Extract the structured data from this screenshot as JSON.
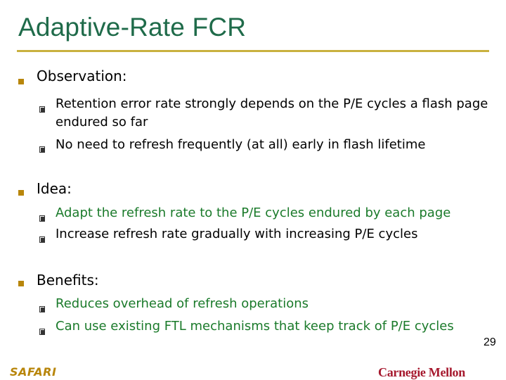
{
  "slide": {
    "title": "Adaptive-Rate FCR",
    "sections": [
      {
        "heading": "Observation:",
        "items": [
          "Retention error rate strongly depends on the P/E cycles a flash page endured so far",
          "No need to refresh frequently (at all) early in flash lifetime"
        ]
      },
      {
        "heading": "Idea:",
        "items": [
          "Adapt the refresh rate to the P/E cycles endured by each page",
          "Increase refresh rate gradually with increasing P/E cycles"
        ]
      },
      {
        "heading": "Benefits:",
        "items": [
          "Reduces overhead of refresh operations",
          "Can use existing FTL mechanisms that keep track of P/E cycles"
        ]
      }
    ],
    "footer": {
      "left_logo": "SAFARI",
      "right_logo": "Carnegie Mellon",
      "page_number": "29"
    }
  },
  "colors": {
    "title": "#1f6b4a",
    "rule": "#c9b13f",
    "bullet": "#b8860b",
    "idea_text": "#1a7a2a",
    "benefit_text": "#1a7a2a",
    "cmu": "#a6192e"
  }
}
